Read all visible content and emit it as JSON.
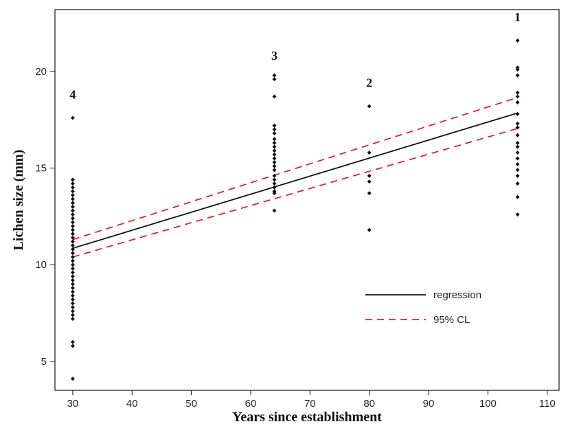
{
  "chart_data": {
    "type": "scatter",
    "xlabel": "Years since establishment",
    "ylabel": "Lichen size (mm)",
    "xlim": [
      27,
      112
    ],
    "ylim": [
      3.5,
      23.2
    ],
    "x_ticks": [
      30,
      40,
      50,
      60,
      70,
      80,
      90,
      100,
      110
    ],
    "y_ticks": [
      5,
      10,
      15,
      20
    ],
    "grid": false,
    "legend_position": "bottom-right",
    "group_labels": [
      {
        "text": "4",
        "x": 30,
        "y": 18.6
      },
      {
        "text": "3",
        "x": 64,
        "y": 20.6
      },
      {
        "text": "2",
        "x": 80,
        "y": 19.2
      },
      {
        "text": "1",
        "x": 105,
        "y": 22.6
      }
    ],
    "series": [
      {
        "kind": "points",
        "color": "#111111",
        "groups": [
          {
            "x": 30,
            "y": [
              17.6,
              14.4,
              14.2,
              14.0,
              13.8,
              13.6,
              13.4,
              13.2,
              13.0,
              12.8,
              12.6,
              12.4,
              12.2,
              12.0,
              11.8,
              11.6,
              11.4,
              11.2,
              11.0,
              10.8,
              10.6,
              10.4,
              10.2,
              10.0,
              9.8,
              9.6,
              9.4,
              9.2,
              9.0,
              8.8,
              8.6,
              8.4,
              8.2,
              8.0,
              7.8,
              7.6,
              7.4,
              7.2,
              6.0,
              5.8,
              4.1
            ]
          },
          {
            "x": 64,
            "y": [
              19.8,
              19.6,
              18.7,
              17.2,
              17.0,
              16.8,
              16.5,
              16.3,
              16.1,
              15.9,
              15.7,
              15.5,
              15.3,
              15.1,
              14.9,
              14.6,
              14.4,
              14.2,
              14.0,
              13.8,
              13.7,
              12.8
            ]
          },
          {
            "x": 80,
            "y": [
              18.2,
              15.8,
              14.6,
              14.3,
              13.7,
              11.8
            ]
          },
          {
            "x": 105,
            "y": [
              21.6,
              20.2,
              20.1,
              19.8,
              18.9,
              18.7,
              18.4,
              17.8,
              17.3,
              17.1,
              16.7,
              16.3,
              16.1,
              15.8,
              15.5,
              15.2,
              14.9,
              14.6,
              14.2,
              13.5,
              12.6
            ]
          }
        ]
      },
      {
        "name": "regression",
        "kind": "line",
        "color": "#111111",
        "dash": "solid",
        "x": [
          30,
          105
        ],
        "y": [
          10.85,
          17.85
        ]
      },
      {
        "name": "95% CL",
        "kind": "line",
        "color": "#e0202a",
        "dash": "dashed",
        "x": [
          30,
          105
        ],
        "y": [
          11.3,
          18.65
        ]
      },
      {
        "kind": "line",
        "color": "#e0202a",
        "dash": "dashed",
        "x": [
          30,
          105
        ],
        "y": [
          10.4,
          17.05
        ]
      }
    ]
  }
}
